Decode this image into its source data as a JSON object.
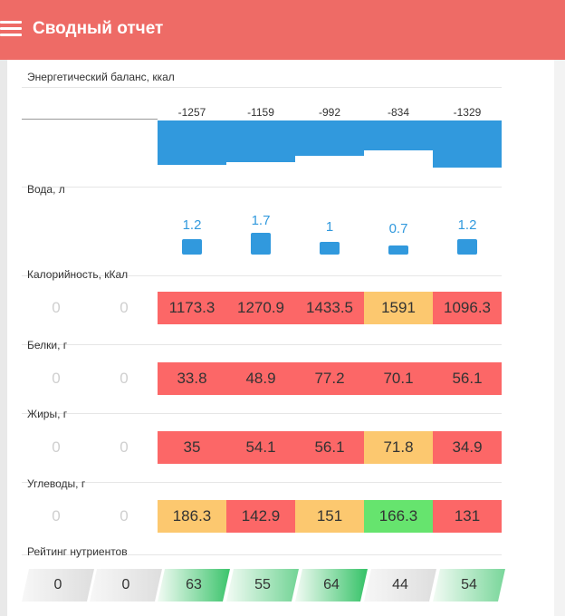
{
  "header": {
    "title": "Сводный отчет",
    "color": "#ee6b66"
  },
  "sections": {
    "energy": "Энергетический баланс, ккал",
    "water": "Вода, л",
    "calories": "Калорийность, кКал",
    "protein": "Белки, г",
    "fat": "Жиры, г",
    "carbs": "Углеводы, г",
    "rating": "Рейтинг нутриентов"
  },
  "colors": {
    "red": "#fc6767",
    "orange": "#fcc86f",
    "green": "#66e46e",
    "blue": "#3199dd"
  },
  "energy_values": [
    "-1257",
    "-1159",
    "-992",
    "-834",
    "-1329"
  ],
  "water_values": [
    "1.2",
    "1.7",
    "1",
    "0.7",
    "1.2"
  ],
  "calories": [
    "0",
    "0",
    "1173.3",
    "1270.9",
    "1433.5",
    "1591",
    "1096.3"
  ],
  "protein": [
    "0",
    "0",
    "33.8",
    "48.9",
    "77.2",
    "70.1",
    "56.1"
  ],
  "fat": [
    "0",
    "0",
    "35",
    "54.1",
    "56.1",
    "71.8",
    "34.9"
  ],
  "carbs": [
    "0",
    "0",
    "186.3",
    "142.9",
    "151",
    "166.3",
    "131"
  ],
  "rating": [
    "0",
    "0",
    "63",
    "55",
    "64",
    "44",
    "54"
  ],
  "status": {
    "calories": [
      "empty",
      "empty",
      "red",
      "red",
      "red",
      "orange",
      "red"
    ],
    "protein": [
      "empty",
      "empty",
      "red",
      "red",
      "red",
      "red",
      "red"
    ],
    "fat": [
      "empty",
      "empty",
      "red",
      "red",
      "red",
      "orange",
      "red"
    ],
    "carbs": [
      "empty",
      "empty",
      "orange",
      "red",
      "orange",
      "green",
      "red"
    ]
  }
}
